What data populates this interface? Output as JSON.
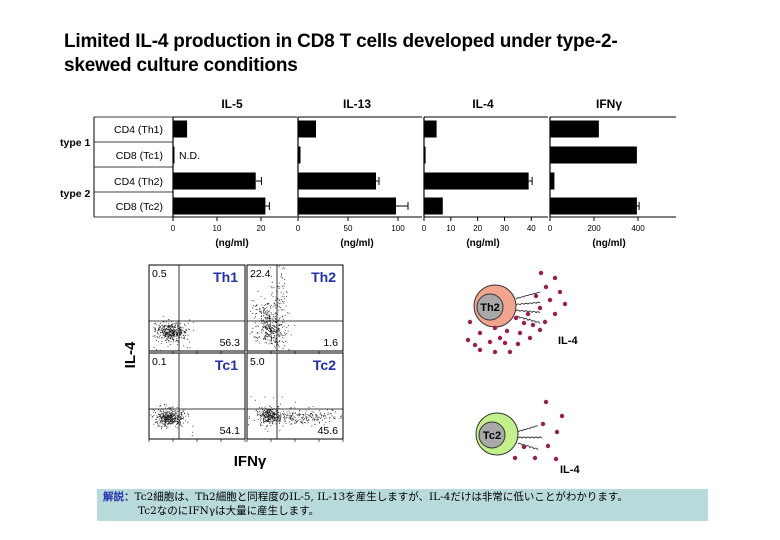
{
  "slide": {
    "title_line1": "Limited IL-4 production in CD8 T cells developed under type-2-",
    "title_line2": "skewed culture conditions"
  },
  "chart_data": [
    {
      "type": "bar",
      "orientation": "horizontal",
      "categories": [
        "CD4 (Th1)",
        "CD8 (Tc1)",
        "CD4 (Th2)",
        "CD8 (Tc2)"
      ],
      "groups": [
        {
          "label": "type 1",
          "categories": [
            "CD4 (Th1)",
            "CD8 (Tc1)"
          ]
        },
        {
          "label": "type 2",
          "categories": [
            "CD4 (Th2)",
            "CD8 (Tc2)"
          ]
        }
      ],
      "unit_label": "(ng/ml)",
      "panels": [
        {
          "title": "IL-5",
          "xlim": [
            0,
            25
          ],
          "ticks": [
            0,
            10,
            20
          ],
          "values": [
            3.2,
            0.3,
            18.8,
            21
          ],
          "errors": [
            0,
            0,
            1.3,
            0.9
          ],
          "annotations": [
            null,
            "N.D.",
            null,
            null
          ]
        },
        {
          "title": "IL-13",
          "xlim": [
            0,
            110
          ],
          "ticks": [
            0,
            50,
            100
          ],
          "values": [
            18,
            2.5,
            78,
            98
          ],
          "errors": [
            0,
            0,
            3,
            12
          ],
          "annotations": [
            null,
            null,
            null,
            null
          ]
        },
        {
          "title": "IL-4",
          "xlim": [
            0,
            41
          ],
          "ticks": [
            0,
            10,
            20,
            30,
            40
          ],
          "values": [
            4.7,
            0.6,
            39,
            7
          ],
          "errors": [
            0,
            0,
            1.3,
            0
          ],
          "annotations": [
            null,
            null,
            null,
            null
          ]
        },
        {
          "title": "IFNγ",
          "xlim": [
            0,
            500
          ],
          "ticks": [
            0,
            200,
            400
          ],
          "values": [
            222,
            395,
            20,
            395
          ],
          "errors": [
            0,
            0,
            0,
            10
          ],
          "annotations": [
            null,
            null,
            null,
            null
          ]
        }
      ]
    },
    {
      "type": "scatter",
      "subtype": "flow-cytometry quadrant plots",
      "xlabel": "IFNγ",
      "ylabel": "IL-4",
      "panels": [
        {
          "left_label": "Th1",
          "right_label": "Th2",
          "left_quadrants": {
            "upper_left": "0.5",
            "lower_right": "56.3"
          },
          "right_quadrants": {
            "upper_left": "22.4",
            "lower_right": "1.6"
          }
        },
        {
          "left_label": "Tc1",
          "right_label": "Tc2",
          "left_quadrants": {
            "upper_left": "0.1",
            "lower_right": "54.1"
          },
          "right_quadrants": {
            "upper_left": "5.0",
            "lower_right": "45.6"
          }
        }
      ]
    }
  ],
  "diagram": {
    "cells": [
      {
        "label": "Th2",
        "outer_color": "#f2a58c",
        "product": "IL-4"
      },
      {
        "label": "Tc2",
        "outer_color": "#c3f08a",
        "product": "IL-4"
      }
    ],
    "dot_color": "#9c1c4d",
    "nucleus_color": "#a9a9a9"
  },
  "footer": {
    "label": "解説：",
    "line1": "Tc2細胞は、Th2細胞と同程度のIL-5, IL-13を産生しますが、IL-4だけは非常に低いことがわかります。",
    "line2": "Tc2なのにIFNγは大量に産生します。"
  }
}
